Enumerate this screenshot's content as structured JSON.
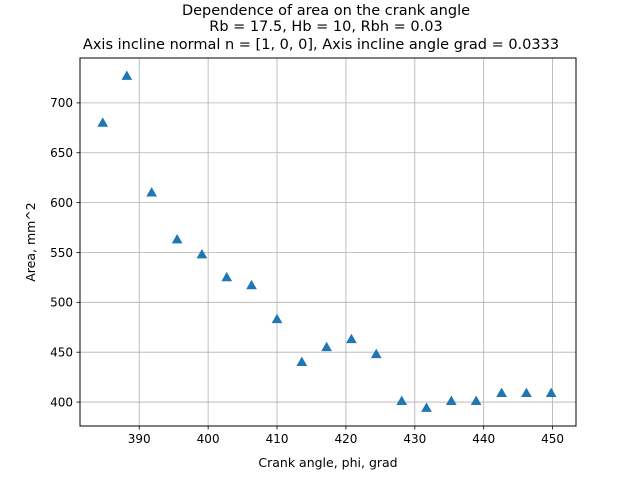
{
  "chart_data": {
    "type": "scatter",
    "title_lines": [
      "Dependence of area on the crank angle",
      "Rb = 17.5, Hb = 10, Rbh = 0.03",
      "Axis incline normal n = [1, 0, 0], Axis incline angle grad = 0.0333"
    ],
    "xlabel": "Crank angle, phi, grad",
    "ylabel": "Area, mm^2",
    "xlim": [
      381.4,
      453.4
    ],
    "ylim": [
      376,
      745
    ],
    "xticks": [
      390,
      400,
      410,
      420,
      430,
      440,
      450
    ],
    "yticks": [
      400,
      450,
      500,
      550,
      600,
      650,
      700
    ],
    "grid": true,
    "marker": "triangle-up",
    "series": [
      {
        "color": "#1f77b4",
        "x": [
          384.7,
          388.2,
          391.8,
          395.5,
          399.1,
          402.7,
          406.3,
          410.0,
          413.6,
          417.2,
          420.8,
          424.4,
          428.1,
          431.7,
          435.3,
          438.9,
          442.6,
          446.2,
          449.8
        ],
        "y": [
          680,
          727,
          610,
          563,
          548,
          525,
          517,
          483,
          440,
          455,
          463,
          448,
          401,
          394,
          401,
          401,
          409,
          409,
          409
        ]
      }
    ]
  }
}
